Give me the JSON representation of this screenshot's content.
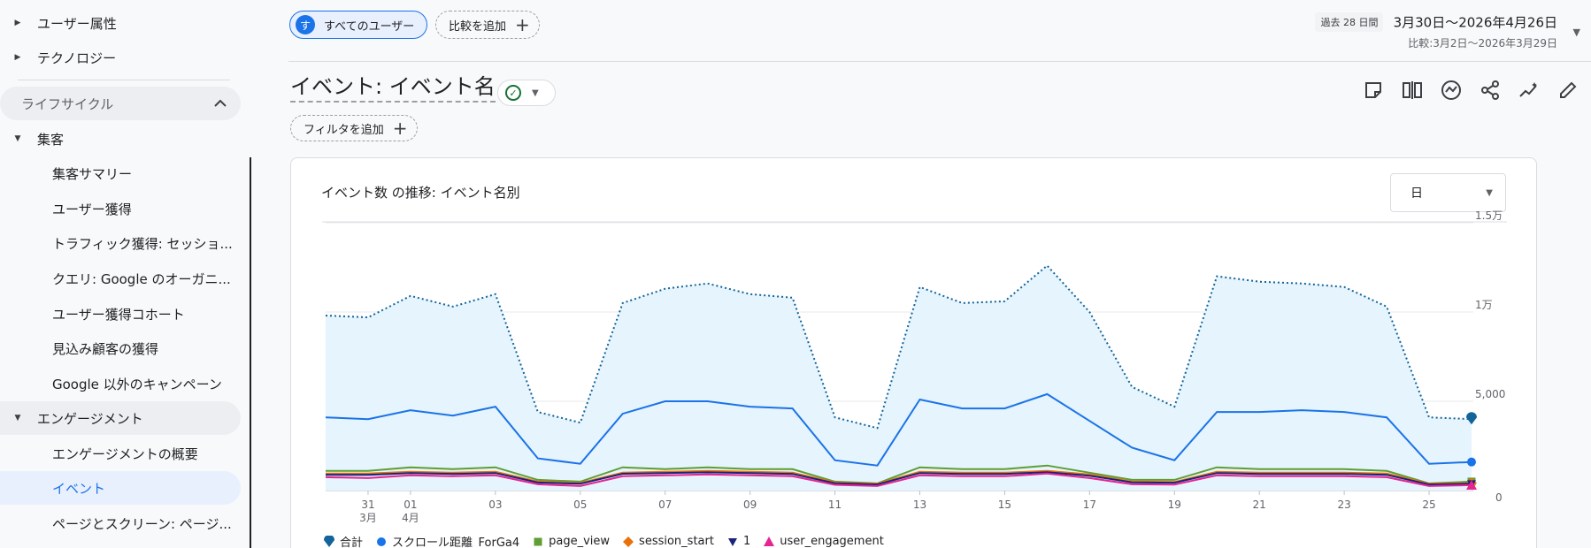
{
  "sidebar": {
    "items": [
      {
        "label": "ユーザー属性",
        "type": "section",
        "expanded": false
      },
      {
        "label": "テクノロジー",
        "type": "section",
        "expanded": false
      },
      {
        "label": "ライフサイクル",
        "type": "group"
      },
      {
        "label": "集客",
        "type": "section",
        "expanded": true
      },
      {
        "label": "集客サマリー",
        "type": "sub"
      },
      {
        "label": "ユーザー獲得",
        "type": "sub"
      },
      {
        "label": "トラフィック獲得: セッショ...",
        "type": "sub"
      },
      {
        "label": "クエリ: Google のオーガニ...",
        "type": "sub"
      },
      {
        "label": "ユーザー獲得コホート",
        "type": "sub"
      },
      {
        "label": "見込み顧客の獲得",
        "type": "sub"
      },
      {
        "label": "Google 以外のキャンペーン",
        "type": "sub"
      },
      {
        "label": "エンゲージメント",
        "type": "section",
        "expanded": true
      },
      {
        "label": "エンゲージメントの概要",
        "type": "sub"
      },
      {
        "label": "イベント",
        "type": "sub",
        "active": true
      },
      {
        "label": "ページとスクリーン: ページ...",
        "type": "sub"
      }
    ]
  },
  "topbar": {
    "user_chip": {
      "avatar": "す",
      "label": "すべてのユーザー"
    },
    "compare_chip": "比較を追加",
    "date_badge": "過去 28 日間",
    "date_range": "3月30日〜2026年4月26日",
    "date_compare": "比較:3月2日〜2026年3月29日"
  },
  "page": {
    "title": "イベント: イベント名",
    "filter_chip": "フィルタを追加",
    "toolbar_icons": [
      "notes-icon",
      "compare-columns-icon",
      "insights-icon",
      "share-icon",
      "sparkle-icon",
      "edit-icon"
    ]
  },
  "card": {
    "title": "イベント数 の推移: イベント名別",
    "granularity": "日"
  },
  "colors": {
    "total": "#12649b",
    "scroll": "#1a73e8",
    "page_view": "#5e9e32",
    "session_start": "#e8710a",
    "one": "#1a237e",
    "user_engagement": "#e52592"
  },
  "chart_data": {
    "type": "line",
    "y_ticks": [
      "0",
      "5,000",
      "1万",
      "1.5万"
    ],
    "ylim": [
      0,
      15000
    ],
    "x_tick_labels": [
      {
        "day": 1,
        "label": "31",
        "sub": "3月"
      },
      {
        "day": 2,
        "label": "01",
        "sub": "4月"
      },
      {
        "day": 4,
        "label": "03"
      },
      {
        "day": 6,
        "label": "05"
      },
      {
        "day": 8,
        "label": "07"
      },
      {
        "day": 10,
        "label": "09"
      },
      {
        "day": 12,
        "label": "11"
      },
      {
        "day": 14,
        "label": "13"
      },
      {
        "day": 16,
        "label": "15"
      },
      {
        "day": 18,
        "label": "17"
      },
      {
        "day": 20,
        "label": "19"
      },
      {
        "day": 22,
        "label": "21"
      },
      {
        "day": 24,
        "label": "23"
      },
      {
        "day": 26,
        "label": "25"
      }
    ],
    "series": [
      {
        "name": "合計",
        "key": "total",
        "style": "dotted-area",
        "marker": "pin",
        "values": [
          9800,
          9700,
          10900,
          10300,
          11000,
          4400,
          3800,
          10500,
          11300,
          11600,
          11000,
          10800,
          4100,
          3500,
          11400,
          10500,
          10600,
          12600,
          10000,
          5800,
          4700,
          12000,
          11700,
          11600,
          11400,
          10300,
          4100,
          4000
        ]
      },
      {
        "name": "スクロール距離_ForGa4",
        "key": "scroll",
        "style": "line",
        "marker": "circle",
        "values": [
          4100,
          4000,
          4500,
          4200,
          4700,
          1800,
          1500,
          4300,
          5000,
          5000,
          4700,
          4600,
          1700,
          1400,
          5100,
          4600,
          4600,
          5400,
          3900,
          2400,
          1700,
          4400,
          4400,
          4500,
          4400,
          4100,
          1500,
          1600
        ]
      },
      {
        "name": "page_view",
        "key": "page_view",
        "style": "line",
        "marker": "square",
        "values": [
          1100,
          1100,
          1300,
          1200,
          1300,
          600,
          500,
          1300,
          1200,
          1300,
          1200,
          1200,
          500,
          400,
          1300,
          1200,
          1200,
          1400,
          1000,
          600,
          600,
          1300,
          1200,
          1200,
          1200,
          1100,
          400,
          500
        ]
      },
      {
        "name": "session_start",
        "key": "session_start",
        "style": "line",
        "marker": "diamond",
        "values": [
          950,
          950,
          1050,
          1000,
          1050,
          500,
          420,
          1000,
          1050,
          1100,
          1050,
          1000,
          450,
          380,
          1050,
          1000,
          1000,
          1100,
          900,
          500,
          480,
          1050,
          1000,
          1000,
          1000,
          950,
          380,
          420
        ]
      },
      {
        "name": "1",
        "key": "one",
        "style": "line",
        "marker": "triangle-down",
        "values": [
          880,
          880,
          980,
          930,
          980,
          450,
          380,
          940,
          980,
          1020,
          980,
          930,
          410,
          340,
          980,
          930,
          930,
          1030,
          830,
          460,
          440,
          980,
          930,
          930,
          930,
          880,
          340,
          380
        ]
      },
      {
        "name": "user_engagement",
        "key": "user_engagement",
        "style": "line",
        "marker": "triangle-up",
        "values": [
          750,
          700,
          850,
          800,
          850,
          350,
          250,
          800,
          850,
          900,
          850,
          800,
          320,
          250,
          850,
          800,
          800,
          950,
          700,
          350,
          330,
          850,
          800,
          800,
          800,
          750,
          250,
          300
        ]
      }
    ]
  }
}
